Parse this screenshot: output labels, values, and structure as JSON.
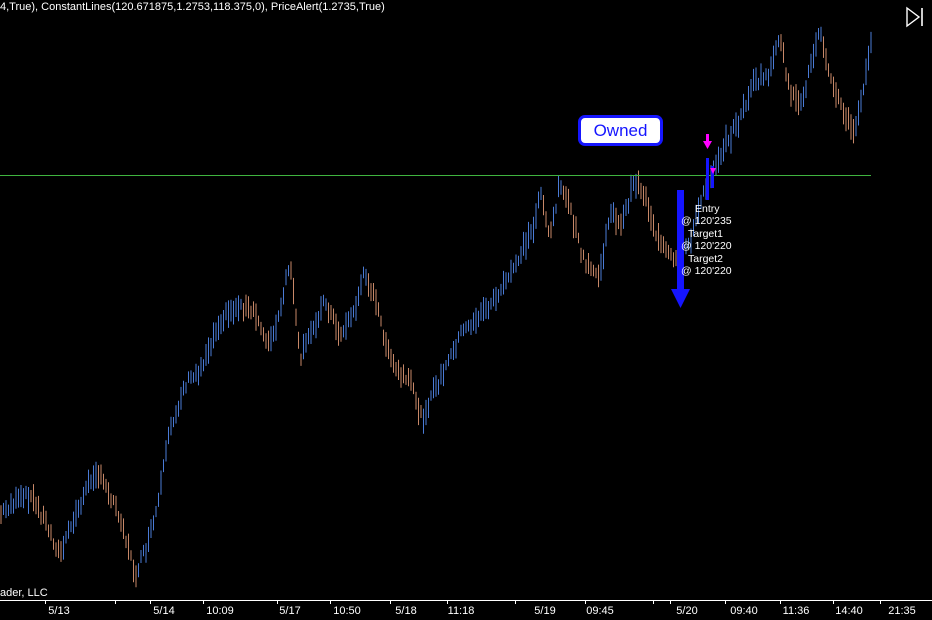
{
  "indicator_line": "4,True), ConstantLines(120.671875,1.2753,118.375,0), PriceAlert(1.2735,True)",
  "position_badge": "Owned",
  "orders": [
    {
      "name": "Entry",
      "price": "@ 120'235"
    },
    {
      "name": "Target1",
      "price": "@ 120'220"
    },
    {
      "name": "Target2",
      "price": "@ 120'220"
    }
  ],
  "copyright": "ader, LLC",
  "x_axis_labels": [
    "5/13",
    "5/14",
    "10:09",
    "5/17",
    "10:50",
    "5/18",
    "11:18",
    "5/19",
    "09:45",
    "5/20",
    "09:40",
    "11:36",
    "14:40",
    "21:35"
  ],
  "icons": {
    "go_to_end": "skip-to-end-icon",
    "entry_marker": "down-arrow-marker-icon",
    "short_signal": "down-arrow-icon"
  },
  "colors": {
    "background": "#000000",
    "up_bar": "#4a7bd6",
    "down_bar": "#c88868",
    "constant_line": "#3fb43f",
    "signal_arrow": "#1515ff",
    "entry_marker": "#ff00ff",
    "badge_border": "#1616ff"
  }
}
